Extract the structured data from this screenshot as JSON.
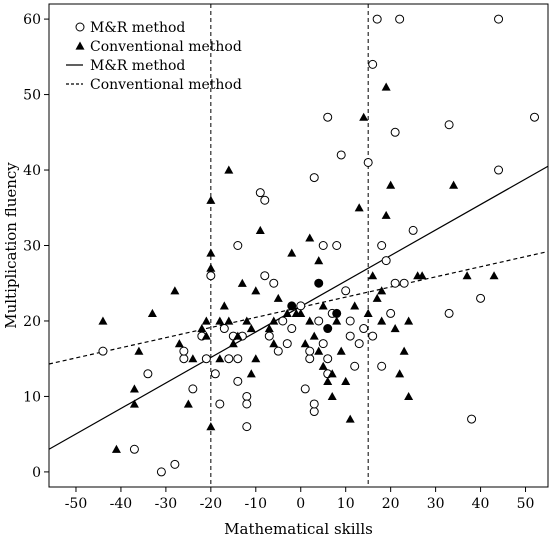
{
  "chart_data": {
    "type": "scatter",
    "xlabel": "Mathematical skills",
    "ylabel": "Multiplication fluency",
    "xlim": [
      -56,
      55
    ],
    "ylim": [
      -2,
      62
    ],
    "xticks": [
      -50,
      -40,
      -30,
      -20,
      -10,
      0,
      10,
      20,
      30,
      40,
      50
    ],
    "yticks": [
      0,
      10,
      20,
      30,
      40,
      50,
      60
    ],
    "vlines": [
      -20,
      15
    ],
    "legend_position": "top-left",
    "legend": [
      {
        "label": "M&R method",
        "kind": "open-circle"
      },
      {
        "label": "Conventional method",
        "kind": "filled-triangle"
      },
      {
        "label": "M&R method",
        "kind": "solid-line"
      },
      {
        "label": "Conventional method",
        "kind": "dashed-line"
      }
    ],
    "series": [
      {
        "name": "M&R method",
        "marker": "open-circle",
        "points": [
          [
            -44,
            16
          ],
          [
            -37,
            3
          ],
          [
            -34,
            13
          ],
          [
            -31,
            0
          ],
          [
            -28,
            1
          ],
          [
            -26,
            15
          ],
          [
            -26,
            16
          ],
          [
            -24,
            11
          ],
          [
            -22,
            18
          ],
          [
            -21,
            15
          ],
          [
            -20,
            26
          ],
          [
            -19,
            13
          ],
          [
            -18,
            9
          ],
          [
            -17,
            19
          ],
          [
            -16,
            15
          ],
          [
            -15,
            18
          ],
          [
            -14,
            12
          ],
          [
            -14,
            15
          ],
          [
            -14,
            30
          ],
          [
            -13,
            18
          ],
          [
            -12,
            10
          ],
          [
            -12,
            9
          ],
          [
            -12,
            6
          ],
          [
            -9,
            37
          ],
          [
            -8,
            36
          ],
          [
            -8,
            26
          ],
          [
            -7,
            18
          ],
          [
            -6,
            25
          ],
          [
            -5,
            16
          ],
          [
            -4,
            20
          ],
          [
            -3,
            17
          ],
          [
            -2,
            19
          ],
          [
            0,
            22
          ],
          [
            1,
            11
          ],
          [
            2,
            15
          ],
          [
            2,
            16
          ],
          [
            3,
            39
          ],
          [
            3,
            8
          ],
          [
            3,
            9
          ],
          [
            4,
            20
          ],
          [
            5,
            17
          ],
          [
            5,
            30
          ],
          [
            6,
            47
          ],
          [
            6,
            13
          ],
          [
            6,
            15
          ],
          [
            7,
            21
          ],
          [
            8,
            30
          ],
          [
            9,
            42
          ],
          [
            10,
            24
          ],
          [
            11,
            18
          ],
          [
            11,
            20
          ],
          [
            12,
            14
          ],
          [
            13,
            17
          ],
          [
            14,
            19
          ],
          [
            15,
            41
          ],
          [
            16,
            54
          ],
          [
            16,
            18
          ],
          [
            17,
            60
          ],
          [
            18,
            30
          ],
          [
            18,
            14
          ],
          [
            19,
            28
          ],
          [
            20,
            21
          ],
          [
            21,
            45
          ],
          [
            21,
            25
          ],
          [
            22,
            60
          ],
          [
            23,
            25
          ],
          [
            25,
            32
          ],
          [
            33,
            46
          ],
          [
            33,
            21
          ],
          [
            38,
            7
          ],
          [
            40,
            23
          ],
          [
            44,
            60
          ],
          [
            44,
            40
          ],
          [
            52,
            47
          ]
        ]
      },
      {
        "name": "Conventional method",
        "marker": "filled-triangle",
        "points": [
          [
            -44,
            20
          ],
          [
            -41,
            3
          ],
          [
            -37,
            9
          ],
          [
            -37,
            11
          ],
          [
            -36,
            16
          ],
          [
            -33,
            21
          ],
          [
            -28,
            24
          ],
          [
            -27,
            17
          ],
          [
            -25,
            9
          ],
          [
            -24,
            15
          ],
          [
            -22,
            19
          ],
          [
            -21,
            20
          ],
          [
            -21,
            18
          ],
          [
            -20,
            29
          ],
          [
            -20,
            36
          ],
          [
            -20,
            27
          ],
          [
            -20,
            6
          ],
          [
            -18,
            15
          ],
          [
            -18,
            20
          ],
          [
            -17,
            22
          ],
          [
            -16,
            20
          ],
          [
            -16,
            40
          ],
          [
            -15,
            17
          ],
          [
            -14,
            18
          ],
          [
            -13,
            25
          ],
          [
            -12,
            20
          ],
          [
            -11,
            19
          ],
          [
            -11,
            13
          ],
          [
            -10,
            24
          ],
          [
            -10,
            15
          ],
          [
            -9,
            32
          ],
          [
            -7,
            19
          ],
          [
            -6,
            20
          ],
          [
            -6,
            17
          ],
          [
            -5,
            23
          ],
          [
            -3,
            21
          ],
          [
            -2,
            29
          ],
          [
            -1,
            21
          ],
          [
            0,
            21
          ],
          [
            1,
            17
          ],
          [
            2,
            20
          ],
          [
            2,
            31
          ],
          [
            3,
            18
          ],
          [
            4,
            28
          ],
          [
            4,
            16
          ],
          [
            5,
            22
          ],
          [
            5,
            14
          ],
          [
            6,
            12
          ],
          [
            7,
            13
          ],
          [
            7,
            10
          ],
          [
            8,
            20
          ],
          [
            9,
            16
          ],
          [
            10,
            12
          ],
          [
            11,
            7
          ],
          [
            12,
            22
          ],
          [
            13,
            35
          ],
          [
            14,
            47
          ],
          [
            15,
            21
          ],
          [
            16,
            26
          ],
          [
            17,
            23
          ],
          [
            18,
            24
          ],
          [
            18,
            20
          ],
          [
            19,
            51
          ],
          [
            19,
            34
          ],
          [
            20,
            38
          ],
          [
            21,
            19
          ],
          [
            22,
            13
          ],
          [
            23,
            16
          ],
          [
            24,
            20
          ],
          [
            24,
            10
          ],
          [
            26,
            26
          ],
          [
            27,
            26
          ],
          [
            34,
            38
          ],
          [
            37,
            26
          ],
          [
            43,
            26
          ]
        ]
      },
      {
        "name": "Filled circles",
        "marker": "filled-circle",
        "points": [
          [
            -2,
            22
          ],
          [
            4,
            25
          ],
          [
            6,
            19
          ],
          [
            8,
            21
          ]
        ]
      }
    ],
    "fit_lines": [
      {
        "label": "M&R method",
        "style": "solid",
        "x": [
          -56,
          55
        ],
        "y": [
          3,
          40.5
        ]
      },
      {
        "label": "Conventional method",
        "style": "dashed",
        "x": [
          -56,
          55
        ],
        "y": [
          14.3,
          29.2
        ]
      }
    ]
  }
}
